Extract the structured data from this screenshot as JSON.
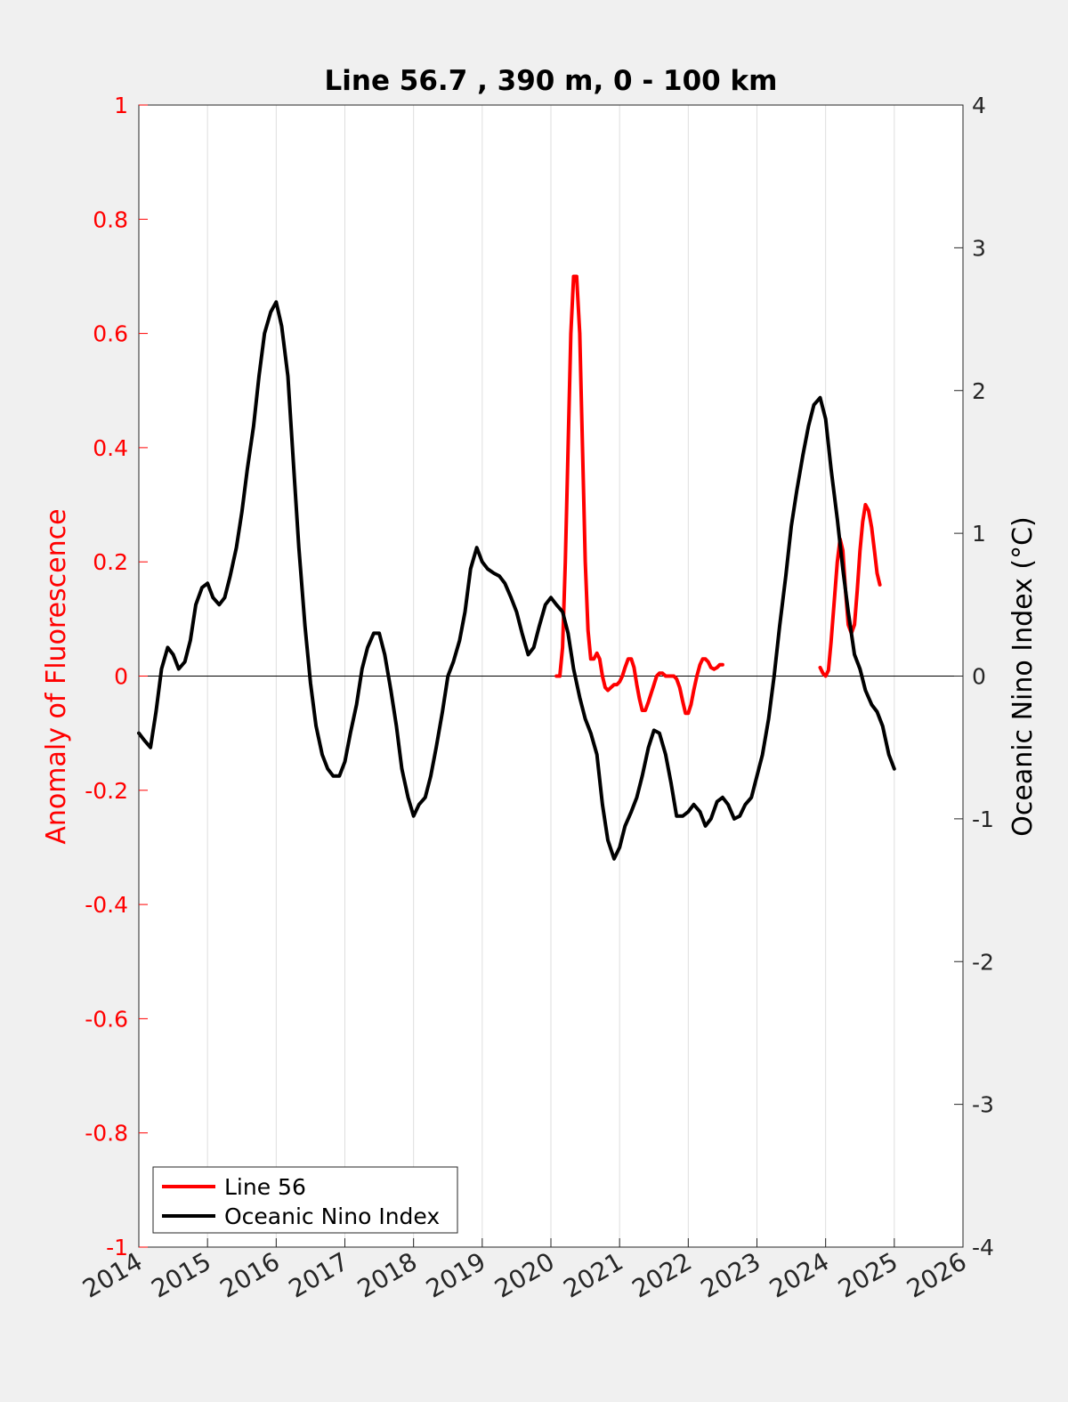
{
  "chart_data": {
    "type": "line",
    "title": "Line 56.7 , 390 m, 0 - 100 km",
    "ylabel_left": "Anomaly of Fluorescence",
    "ylabel_right": "Oceanic Nino Index (°C)",
    "xlim": [
      2014,
      2026
    ],
    "ylim_left": [
      -1,
      1
    ],
    "ylim_right": [
      -4,
      4
    ],
    "x_ticks": [
      "2014",
      "2015",
      "2016",
      "2017",
      "2018",
      "2019",
      "2020",
      "2021",
      "2022",
      "2023",
      "2024",
      "2025",
      "2026"
    ],
    "y_left_ticks": [
      "1",
      "0.8",
      "0.6",
      "0.4",
      "0.2",
      "0",
      "-0.2",
      "-0.4",
      "-0.6",
      "-0.8",
      "-1"
    ],
    "y_right_ticks": [
      "4",
      "3",
      "2",
      "1",
      "0",
      "-1",
      "-2",
      "-3",
      "-4"
    ],
    "grid": "vertical",
    "legend_position": "bottom-left",
    "colors": {
      "line56": "#ff0000",
      "oni": "#000000",
      "left_axis": "#ff0000",
      "right_axis": "#000000"
    },
    "series": [
      {
        "name": "Line 56",
        "axis": "left",
        "segments": [
          [
            [
              2020.08,
              0.0
            ],
            [
              2020.13,
              0.0
            ],
            [
              2020.17,
              0.05
            ],
            [
              2020.21,
              0.2
            ],
            [
              2020.25,
              0.4
            ],
            [
              2020.29,
              0.6
            ],
            [
              2020.33,
              0.7
            ],
            [
              2020.375,
              0.7
            ],
            [
              2020.42,
              0.6
            ],
            [
              2020.46,
              0.4
            ],
            [
              2020.5,
              0.2
            ],
            [
              2020.54,
              0.08
            ],
            [
              2020.58,
              0.03
            ],
            [
              2020.625,
              0.03
            ],
            [
              2020.67,
              0.04
            ],
            [
              2020.71,
              0.03
            ],
            [
              2020.75,
              0.0
            ],
            [
              2020.79,
              -0.02
            ],
            [
              2020.83,
              -0.025
            ],
            [
              2020.875,
              -0.02
            ],
            [
              2020.92,
              -0.015
            ],
            [
              2020.96,
              -0.015
            ],
            [
              2021.0,
              -0.01
            ],
            [
              2021.04,
              0.0
            ],
            [
              2021.08,
              0.015
            ],
            [
              2021.125,
              0.03
            ],
            [
              2021.17,
              0.03
            ],
            [
              2021.21,
              0.015
            ],
            [
              2021.25,
              -0.015
            ],
            [
              2021.29,
              -0.04
            ],
            [
              2021.33,
              -0.06
            ],
            [
              2021.375,
              -0.06
            ],
            [
              2021.42,
              -0.045
            ],
            [
              2021.46,
              -0.03
            ],
            [
              2021.5,
              -0.015
            ],
            [
              2021.54,
              0.0
            ],
            [
              2021.58,
              0.005
            ],
            [
              2021.625,
              0.005
            ],
            [
              2021.67,
              0.0
            ],
            [
              2021.71,
              0.0
            ],
            [
              2021.75,
              0.0
            ],
            [
              2021.79,
              0.0
            ],
            [
              2021.83,
              -0.005
            ],
            [
              2021.875,
              -0.02
            ],
            [
              2021.92,
              -0.045
            ],
            [
              2021.96,
              -0.065
            ],
            [
              2022.0,
              -0.065
            ],
            [
              2022.04,
              -0.05
            ],
            [
              2022.08,
              -0.025
            ],
            [
              2022.125,
              0.0
            ],
            [
              2022.17,
              0.02
            ],
            [
              2022.21,
              0.03
            ],
            [
              2022.25,
              0.03
            ],
            [
              2022.29,
              0.025
            ],
            [
              2022.33,
              0.015
            ],
            [
              2022.375,
              0.012
            ],
            [
              2022.42,
              0.015
            ],
            [
              2022.46,
              0.02
            ],
            [
              2022.5,
              0.02
            ]
          ],
          [
            [
              2023.92,
              0.015
            ],
            [
              2023.96,
              0.005
            ],
            [
              2024.0,
              0.0
            ],
            [
              2024.04,
              0.01
            ],
            [
              2024.08,
              0.06
            ],
            [
              2024.125,
              0.13
            ],
            [
              2024.17,
              0.2
            ],
            [
              2024.21,
              0.24
            ],
            [
              2024.25,
              0.22
            ],
            [
              2024.29,
              0.15
            ],
            [
              2024.33,
              0.09
            ],
            [
              2024.375,
              0.075
            ],
            [
              2024.42,
              0.09
            ],
            [
              2024.46,
              0.15
            ],
            [
              2024.5,
              0.22
            ],
            [
              2024.54,
              0.27
            ],
            [
              2024.58,
              0.3
            ],
            [
              2024.625,
              0.29
            ],
            [
              2024.67,
              0.26
            ],
            [
              2024.71,
              0.22
            ],
            [
              2024.75,
              0.18
            ],
            [
              2024.79,
              0.16
            ]
          ]
        ]
      },
      {
        "name": "Oceanic Nino Index",
        "axis": "right",
        "x": [
          2014.0,
          2014.08,
          2014.17,
          2014.25,
          2014.33,
          2014.42,
          2014.5,
          2014.58,
          2014.67,
          2014.75,
          2014.83,
          2014.92,
          2015.0,
          2015.08,
          2015.17,
          2015.25,
          2015.33,
          2015.42,
          2015.5,
          2015.58,
          2015.67,
          2015.75,
          2015.83,
          2015.92,
          2016.0,
          2016.08,
          2016.17,
          2016.25,
          2016.33,
          2016.42,
          2016.5,
          2016.58,
          2016.67,
          2016.75,
          2016.83,
          2016.92,
          2017.0,
          2017.08,
          2017.17,
          2017.25,
          2017.33,
          2017.42,
          2017.5,
          2017.58,
          2017.67,
          2017.75,
          2017.83,
          2017.92,
          2018.0,
          2018.08,
          2018.17,
          2018.25,
          2018.33,
          2018.42,
          2018.5,
          2018.58,
          2018.67,
          2018.75,
          2018.83,
          2018.92,
          2019.0,
          2019.08,
          2019.17,
          2019.25,
          2019.33,
          2019.42,
          2019.5,
          2019.58,
          2019.67,
          2019.75,
          2019.83,
          2019.92,
          2020.0,
          2020.08,
          2020.17,
          2020.25,
          2020.33,
          2020.42,
          2020.5,
          2020.58,
          2020.67,
          2020.75,
          2020.83,
          2020.92,
          2021.0,
          2021.08,
          2021.17,
          2021.25,
          2021.33,
          2021.42,
          2021.5,
          2021.58,
          2021.67,
          2021.75,
          2021.83,
          2021.92,
          2022.0,
          2022.08,
          2022.17,
          2022.25,
          2022.33,
          2022.42,
          2022.5,
          2022.58,
          2022.67,
          2022.75,
          2022.83,
          2022.92,
          2023.0,
          2023.08,
          2023.17,
          2023.25,
          2023.33,
          2023.42,
          2023.5,
          2023.58,
          2023.67,
          2023.75,
          2023.83,
          2023.92,
          2024.0,
          2024.08,
          2024.17,
          2024.25,
          2024.33,
          2024.42,
          2024.5,
          2024.58,
          2024.67,
          2024.75,
          2024.83,
          2024.92,
          2025.0
        ],
        "values": [
          -0.4,
          -0.45,
          -0.5,
          -0.25,
          0.05,
          0.2,
          0.15,
          0.05,
          0.1,
          0.25,
          0.5,
          0.62,
          0.65,
          0.55,
          0.5,
          0.55,
          0.7,
          0.9,
          1.15,
          1.45,
          1.75,
          2.1,
          2.4,
          2.55,
          2.62,
          2.45,
          2.1,
          1.5,
          0.9,
          0.35,
          -0.05,
          -0.35,
          -0.55,
          -0.65,
          -0.7,
          -0.7,
          -0.6,
          -0.4,
          -0.2,
          0.05,
          0.2,
          0.3,
          0.3,
          0.15,
          -0.1,
          -0.35,
          -0.65,
          -0.85,
          -0.98,
          -0.9,
          -0.85,
          -0.7,
          -0.5,
          -0.25,
          0.0,
          0.1,
          0.25,
          0.45,
          0.75,
          0.9,
          0.8,
          0.75,
          0.72,
          0.7,
          0.65,
          0.55,
          0.45,
          0.3,
          0.15,
          0.2,
          0.35,
          0.5,
          0.55,
          0.5,
          0.45,
          0.3,
          0.05,
          -0.15,
          -0.3,
          -0.4,
          -0.55,
          -0.9,
          -1.15,
          -1.28,
          -1.2,
          -1.05,
          -0.95,
          -0.85,
          -0.7,
          -0.5,
          -0.38,
          -0.4,
          -0.55,
          -0.75,
          -0.98,
          -0.98,
          -0.95,
          -0.9,
          -0.95,
          -1.05,
          -1.0,
          -0.88,
          -0.85,
          -0.9,
          -1.0,
          -0.98,
          -0.9,
          -0.85,
          -0.7,
          -0.55,
          -0.3,
          0.0,
          0.35,
          0.7,
          1.05,
          1.3,
          1.55,
          1.75,
          1.9,
          1.95,
          1.8,
          1.45,
          1.1,
          0.75,
          0.45,
          0.15,
          0.05,
          -0.1,
          -0.2,
          -0.25,
          -0.35,
          -0.55,
          -0.65
        ]
      }
    ]
  }
}
